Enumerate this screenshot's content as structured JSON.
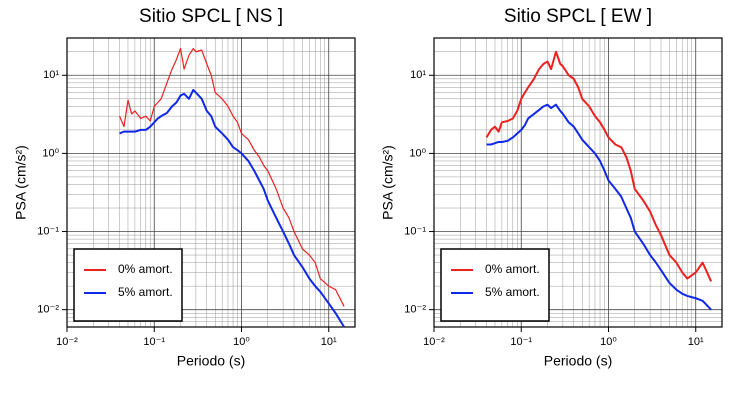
{
  "chart_data": [
    {
      "type": "line",
      "title": "Sitio SPCL [ NS ]",
      "xlabel": "Periodo (s)",
      "ylabel": "PSA (cm/s²)",
      "xscale": "log",
      "yscale": "log",
      "grid": true,
      "minor_grid": true,
      "legend": "lower left",
      "xlim": [
        0.01,
        20
      ],
      "ylim": [
        0.006,
        30
      ],
      "xticks": [
        {
          "value": 0.01,
          "label": "10⁻²"
        },
        {
          "value": 0.1,
          "label": "10⁻¹"
        },
        {
          "value": 1,
          "label": "10⁰"
        },
        {
          "value": 10,
          "label": "10¹"
        }
      ],
      "yticks": [
        {
          "value": 0.01,
          "label": "10⁻²"
        },
        {
          "value": 0.1,
          "label": "10⁻¹"
        },
        {
          "value": 1,
          "label": "10⁰"
        },
        {
          "value": 10,
          "label": "10¹"
        }
      ],
      "x": [
        0.04,
        0.045,
        0.05,
        0.055,
        0.06,
        0.07,
        0.08,
        0.09,
        0.1,
        0.11,
        0.12,
        0.14,
        0.16,
        0.18,
        0.2,
        0.22,
        0.25,
        0.28,
        0.3,
        0.35,
        0.4,
        0.45,
        0.5,
        0.6,
        0.7,
        0.8,
        0.9,
        1,
        1.2,
        1.4,
        1.6,
        1.8,
        2,
        2.5,
        3,
        3.5,
        4,
        5,
        6,
        7,
        8,
        10,
        12,
        15
      ],
      "series": [
        {
          "name": "0% amort.",
          "color": "#ee2020",
          "width": 1.2,
          "values": [
            3.0,
            2.2,
            4.8,
            3.2,
            3.5,
            2.8,
            3.0,
            2.6,
            4,
            4.5,
            5,
            8,
            12,
            16,
            22,
            12,
            18,
            22,
            20,
            21,
            14,
            10,
            6,
            5,
            4,
            3,
            2.5,
            1.8,
            1.5,
            1.1,
            0.9,
            0.7,
            0.6,
            0.35,
            0.2,
            0.15,
            0.1,
            0.06,
            0.05,
            0.04,
            0.025,
            0.02,
            0.018,
            0.011
          ]
        },
        {
          "name": "5% amort.",
          "color": "#1028e8",
          "width": 2,
          "values": [
            1.8,
            1.9,
            1.9,
            1.9,
            1.9,
            2.0,
            2.0,
            2.2,
            2.5,
            2.8,
            3.0,
            3.3,
            4,
            4.5,
            5.5,
            5.8,
            5,
            6.5,
            6,
            5,
            3.5,
            3,
            2.2,
            1.8,
            1.5,
            1.2,
            1.1,
            1.0,
            0.8,
            0.6,
            0.45,
            0.35,
            0.25,
            0.15,
            0.1,
            0.07,
            0.05,
            0.035,
            0.025,
            0.02,
            0.017,
            0.012,
            0.009,
            0.006
          ]
        }
      ]
    },
    {
      "type": "line",
      "title": "Sitio SPCL [ EW ]",
      "xlabel": "Periodo (s)",
      "ylabel": "PSA (cm/s²)",
      "xscale": "log",
      "yscale": "log",
      "grid": true,
      "minor_grid": true,
      "legend": "lower left",
      "xlim": [
        0.01,
        20
      ],
      "ylim": [
        0.006,
        30
      ],
      "xticks": [
        {
          "value": 0.01,
          "label": "10⁻²"
        },
        {
          "value": 0.1,
          "label": "10⁻¹"
        },
        {
          "value": 1,
          "label": "10⁰"
        },
        {
          "value": 10,
          "label": "10¹"
        }
      ],
      "yticks": [
        {
          "value": 0.01,
          "label": "10⁻²"
        },
        {
          "value": 0.1,
          "label": "10⁻¹"
        },
        {
          "value": 1,
          "label": "10⁰"
        },
        {
          "value": 10,
          "label": "10¹"
        }
      ],
      "x": [
        0.04,
        0.045,
        0.05,
        0.055,
        0.06,
        0.07,
        0.08,
        0.09,
        0.1,
        0.11,
        0.12,
        0.14,
        0.16,
        0.18,
        0.2,
        0.22,
        0.25,
        0.28,
        0.3,
        0.35,
        0.4,
        0.45,
        0.5,
        0.6,
        0.7,
        0.8,
        0.9,
        1,
        1.2,
        1.4,
        1.6,
        1.8,
        2,
        2.5,
        3,
        3.5,
        4,
        5,
        6,
        7,
        8,
        10,
        12,
        15
      ],
      "series": [
        {
          "name": "0% amort.",
          "color": "#ee2020",
          "width": 2,
          "values": [
            1.6,
            2.0,
            2.2,
            1.9,
            2.5,
            2.6,
            2.8,
            3.5,
            5,
            6,
            7,
            9,
            12,
            14,
            15,
            12,
            20,
            14,
            13,
            10,
            9,
            7,
            5,
            4,
            3,
            2.5,
            2,
            1.6,
            1.3,
            1.2,
            0.9,
            0.6,
            0.35,
            0.25,
            0.18,
            0.12,
            0.09,
            0.05,
            0.04,
            0.03,
            0.025,
            0.03,
            0.04,
            0.023
          ]
        },
        {
          "name": "5% amort.",
          "color": "#1028e8",
          "width": 2,
          "values": [
            1.3,
            1.3,
            1.35,
            1.4,
            1.4,
            1.45,
            1.6,
            1.8,
            2.0,
            2.3,
            2.8,
            3.2,
            3.6,
            4,
            4.2,
            3.8,
            4.2,
            3.5,
            3.2,
            2.5,
            2.2,
            1.8,
            1.5,
            1.2,
            1.0,
            0.8,
            0.6,
            0.45,
            0.35,
            0.28,
            0.2,
            0.15,
            0.1,
            0.07,
            0.05,
            0.04,
            0.032,
            0.022,
            0.018,
            0.016,
            0.015,
            0.014,
            0.013,
            0.01
          ]
        }
      ]
    }
  ]
}
